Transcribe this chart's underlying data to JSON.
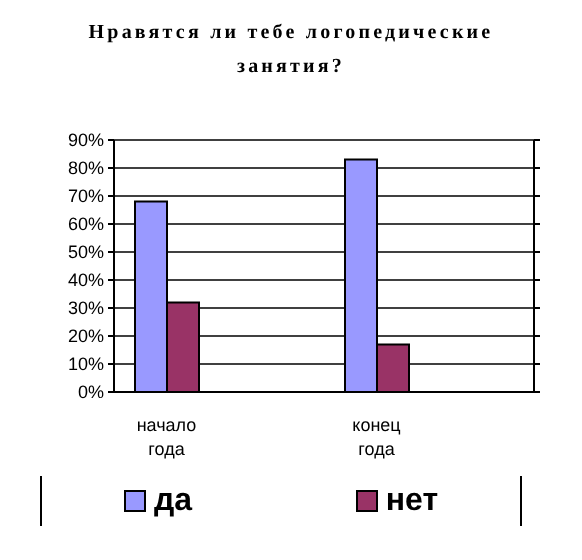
{
  "chart_data": {
    "type": "bar",
    "title": "Нравятся ли тебе логопедические занятия?",
    "categories": [
      "начало года",
      null,
      "конец года",
      null
    ],
    "series": [
      {
        "name": "да",
        "color": "#9999ff",
        "values": [
          68,
          null,
          83,
          null
        ]
      },
      {
        "name": "нет",
        "color": "#993366",
        "values": [
          32,
          null,
          17,
          null
        ]
      }
    ],
    "ylim": [
      0,
      90
    ],
    "yticks": [
      {
        "value": 0,
        "label": "0%"
      },
      {
        "value": 10,
        "label": "10%"
      },
      {
        "value": 20,
        "label": "20%"
      },
      {
        "value": 30,
        "label": "30%"
      },
      {
        "value": 40,
        "label": "40%"
      },
      {
        "value": 50,
        "label": "50%"
      },
      {
        "value": 60,
        "label": "60%"
      },
      {
        "value": 70,
        "label": "70%"
      },
      {
        "value": 80,
        "label": "80%"
      },
      {
        "value": 90,
        "label": "90%"
      }
    ],
    "grid": "y",
    "legend": "bottom"
  }
}
